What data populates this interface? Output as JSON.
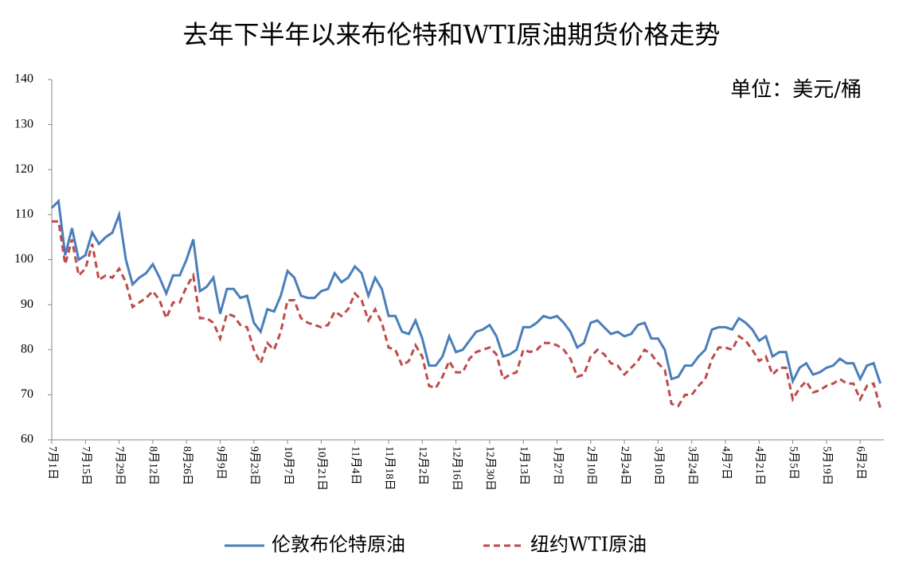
{
  "chart_data": {
    "type": "line",
    "title": "去年下半年以来布伦特和WTI原油期货价格走势",
    "annotation": "单位：美元/桶",
    "categories": [
      "7月1日",
      null,
      null,
      null,
      null,
      "7月15日",
      null,
      null,
      null,
      null,
      "7月29日",
      null,
      null,
      null,
      null,
      "8月12日",
      null,
      null,
      null,
      null,
      "8月26日",
      null,
      null,
      null,
      null,
      "9月9日",
      null,
      null,
      null,
      null,
      "9月23日",
      null,
      null,
      null,
      null,
      "10月7日",
      null,
      null,
      null,
      null,
      "10月21日",
      null,
      null,
      null,
      null,
      "11月4日",
      null,
      null,
      null,
      null,
      "11月18日",
      null,
      null,
      null,
      null,
      "12月2日",
      null,
      null,
      null,
      null,
      "12月16日",
      null,
      null,
      null,
      null,
      "12月30日",
      null,
      null,
      null,
      null,
      "1月13日",
      null,
      null,
      null,
      null,
      "1月27日",
      null,
      null,
      null,
      null,
      "2月10日",
      null,
      null,
      null,
      null,
      "2月24日",
      null,
      null,
      null,
      null,
      "3月10日",
      null,
      null,
      null,
      null,
      "3月24日",
      null,
      null,
      null,
      null,
      "4月7日",
      null,
      null,
      null,
      null,
      "4月21日",
      null,
      null,
      null,
      null,
      "5月5日",
      null,
      null,
      null,
      null,
      "5月19日",
      null,
      null,
      null,
      null,
      "6月2日",
      null,
      null,
      null
    ],
    "series": [
      {
        "name": "伦敦布伦特原油",
        "color": "#4a7ebb",
        "dash": false,
        "values": [
          111.5,
          113,
          101,
          107,
          100,
          101,
          106,
          103.5,
          105,
          106,
          110,
          100,
          94.5,
          96,
          97,
          99,
          96,
          92.5,
          96.5,
          96.5,
          100,
          104.5,
          93,
          94,
          96,
          88,
          93.5,
          93.5,
          91.5,
          92,
          86,
          84,
          89,
          88.5,
          92,
          97.5,
          96,
          92,
          91.5,
          91.5,
          93,
          93.5,
          97,
          95,
          96,
          98.5,
          97,
          92,
          96,
          93.5,
          87.5,
          87.5,
          84,
          83.5,
          86.5,
          82.5,
          76.5,
          76.5,
          78.5,
          83,
          79.5,
          80,
          82,
          84,
          84.5,
          85.5,
          83,
          78.5,
          79,
          80,
          85,
          85,
          86,
          87.5,
          87,
          87.5,
          86,
          84,
          80.5,
          81.5,
          86,
          86.5,
          85,
          83.5,
          84,
          83,
          83.5,
          85.5,
          86,
          82.5,
          82.5,
          80,
          73.5,
          74,
          76.5,
          76.5,
          78.5,
          80,
          84.5,
          85,
          85,
          84.5,
          87,
          86,
          84.5,
          82,
          83,
          78.5,
          79.5,
          79.5,
          73,
          76,
          77,
          74.5,
          75,
          76,
          76.5,
          78,
          77,
          77,
          73.5,
          76.5,
          77,
          72.5
        ]
      },
      {
        "name": "纽约WTI原油",
        "color": "#be4b48",
        "dash": true,
        "values": [
          108.5,
          108.5,
          99,
          104.5,
          96.5,
          98,
          103.5,
          95.5,
          96.5,
          96,
          98,
          95,
          89.5,
          90.5,
          91.5,
          93,
          91,
          87,
          90.5,
          90.5,
          94,
          96.5,
          87,
          87,
          86,
          82.5,
          88,
          87.5,
          85.5,
          85,
          80,
          77,
          81.5,
          80,
          84,
          91,
          91,
          87,
          86,
          85.5,
          85,
          85.5,
          88.5,
          87.5,
          89,
          92.5,
          91,
          86.5,
          89,
          86,
          80.5,
          80,
          76.5,
          77.5,
          81,
          78.5,
          72,
          71.5,
          74,
          77.5,
          75,
          75,
          78,
          79.5,
          80,
          80.5,
          79,
          73.5,
          74.5,
          75,
          80,
          79.5,
          80,
          81.5,
          81.5,
          81,
          80,
          78,
          74,
          74.5,
          78.5,
          80,
          79,
          77,
          76.5,
          74.5,
          76,
          77.5,
          80,
          79,
          77,
          75.5,
          68,
          67.5,
          70,
          70,
          72,
          73.5,
          78,
          80.5,
          80.5,
          80,
          83,
          82,
          80,
          77.5,
          78.5,
          74.5,
          76,
          76,
          69,
          71.5,
          73,
          70.5,
          71,
          72,
          72.5,
          73.5,
          72.5,
          72.5,
          69,
          72,
          72.5,
          67
        ]
      }
    ],
    "ylim": [
      60,
      140
    ],
    "yticks": [
      60,
      70,
      80,
      90,
      100,
      110,
      120,
      130,
      140
    ],
    "grid": false,
    "legend": "bottom"
  }
}
